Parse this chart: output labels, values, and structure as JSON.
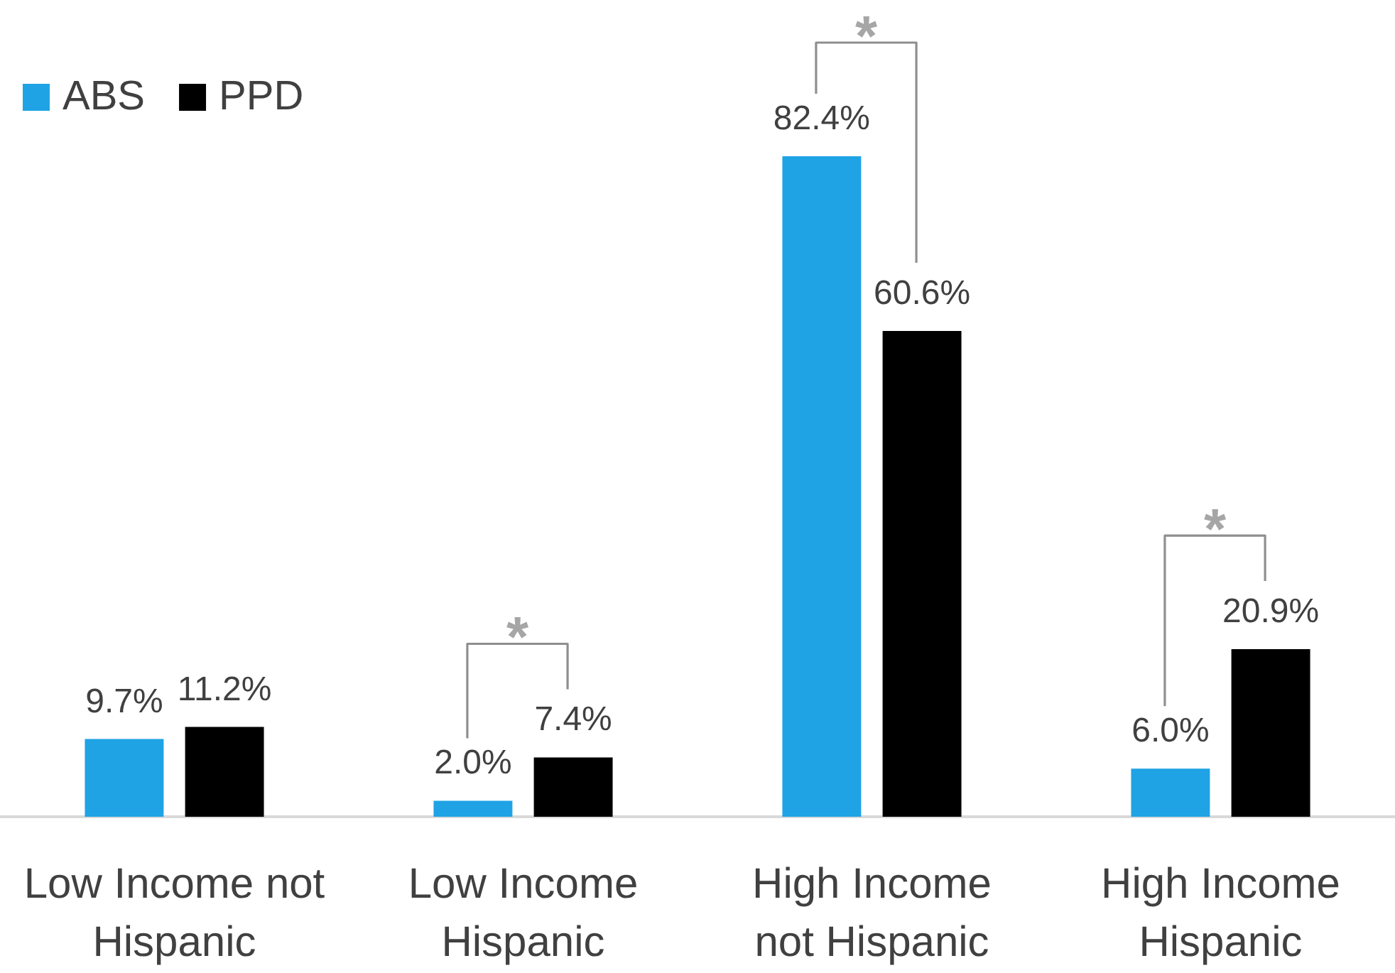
{
  "chart_data": {
    "type": "bar",
    "categories": [
      "Low Income not Hispanic",
      "Low Income Hispanic",
      "High Income not Hispanic",
      "High Income Hispanic"
    ],
    "series": [
      {
        "name": "ABS",
        "color": "#1fa3e5",
        "values": [
          9.7,
          2.0,
          82.4,
          6.0
        ],
        "value_labels": [
          "9.7%",
          "2.0%",
          "82.4%",
          "6.0%"
        ]
      },
      {
        "name": "PPD",
        "color": "#000000",
        "values": [
          11.2,
          7.4,
          60.6,
          20.9
        ],
        "value_labels": [
          "11.2%",
          "7.4%",
          "60.6%",
          "20.9%"
        ]
      }
    ],
    "tick_labels": "x",
    "legend": "top left",
    "annotations": [
      "*",
      "*",
      "*"
    ]
  }
}
